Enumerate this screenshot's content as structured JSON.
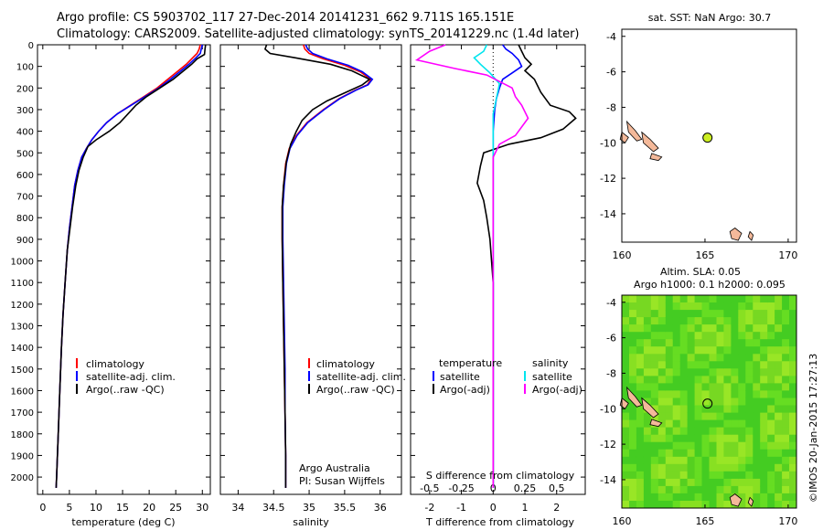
{
  "header": {
    "line1": "Argo profile: CS 5903702_117 27-Dec-2014 20141231_662 9.711S 165.151E",
    "line2": "Climatology: CARS2009. Satellite-adjusted climatology: synTS_20141229.nc (1.4d later)"
  },
  "colors": {
    "climatology": "#ff0000",
    "satellite": "#0000ff",
    "argo": "#000000",
    "satellite_s": "#00e5ee",
    "argo_s": "#ff00ff",
    "land": "#f4b99a",
    "float_marker": "#ccee22"
  },
  "chart_data": [
    {
      "name": "temperature",
      "type": "line",
      "xlabel": "temperature (deg C)",
      "xlim": [
        -1,
        31.5
      ],
      "ylim": [
        2080,
        0
      ],
      "xticks": [
        0,
        5,
        10,
        15,
        20,
        25,
        30
      ],
      "yticks": [
        0,
        100,
        200,
        300,
        400,
        500,
        600,
        700,
        800,
        900,
        1000,
        1100,
        1200,
        1300,
        1400,
        1500,
        1600,
        1700,
        1800,
        1900,
        2000
      ],
      "legend": [
        "climatology",
        "satellite-adj. clim.",
        "Argo(..raw -QC)"
      ],
      "series": [
        {
          "name": "climatology",
          "color_key": "climatology",
          "points": [
            [
              29.6,
              0
            ],
            [
              29.4,
              20
            ],
            [
              29.0,
              40
            ],
            [
              28.2,
              60
            ],
            [
              27.0,
              90
            ],
            [
              25.5,
              120
            ],
            [
              23.5,
              160
            ],
            [
              21.5,
              200
            ],
            [
              19.0,
              240
            ],
            [
              16.5,
              280
            ],
            [
              14.0,
              320
            ],
            [
              12.0,
              360
            ],
            [
              10.5,
              400
            ],
            [
              9.2,
              440
            ],
            [
              8.2,
              480
            ],
            [
              7.3,
              520
            ],
            [
              6.6,
              580
            ],
            [
              6.0,
              650
            ],
            [
              5.5,
              750
            ],
            [
              5.0,
              850
            ],
            [
              4.6,
              950
            ],
            [
              4.2,
              1100
            ],
            [
              3.8,
              1250
            ],
            [
              3.5,
              1400
            ],
            [
              3.2,
              1600
            ],
            [
              2.9,
              1800
            ],
            [
              2.6,
              2000
            ],
            [
              2.5,
              2050
            ]
          ]
        },
        {
          "name": "satellite-adj. clim.",
          "color_key": "satellite",
          "points": [
            [
              30.0,
              0
            ],
            [
              29.8,
              20
            ],
            [
              29.6,
              40
            ],
            [
              28.8,
              60
            ],
            [
              27.5,
              90
            ],
            [
              26.0,
              120
            ],
            [
              24.0,
              160
            ],
            [
              21.8,
              200
            ],
            [
              19.2,
              240
            ],
            [
              16.6,
              280
            ],
            [
              14.0,
              320
            ],
            [
              12.0,
              360
            ],
            [
              10.5,
              400
            ],
            [
              9.2,
              440
            ],
            [
              8.2,
              480
            ],
            [
              7.3,
              520
            ],
            [
              6.6,
              580
            ],
            [
              6.0,
              650
            ],
            [
              5.5,
              750
            ],
            [
              5.0,
              850
            ],
            [
              4.6,
              950
            ],
            [
              4.2,
              1100
            ],
            [
              3.8,
              1250
            ],
            [
              3.5,
              1400
            ],
            [
              3.2,
              1600
            ],
            [
              2.9,
              1800
            ],
            [
              2.6,
              2000
            ],
            [
              2.5,
              2050
            ]
          ]
        },
        {
          "name": "Argo(..raw -QC)",
          "color_key": "argo",
          "points": [
            [
              30.6,
              0
            ],
            [
              30.5,
              20
            ],
            [
              30.4,
              45
            ],
            [
              29.0,
              65
            ],
            [
              28.0,
              90
            ],
            [
              26.5,
              120
            ],
            [
              24.5,
              160
            ],
            [
              22.0,
              200
            ],
            [
              19.5,
              240
            ],
            [
              17.5,
              280
            ],
            [
              16.0,
              320
            ],
            [
              14.5,
              360
            ],
            [
              12.5,
              400
            ],
            [
              10.0,
              440
            ],
            [
              8.5,
              470
            ],
            [
              7.6,
              520
            ],
            [
              6.8,
              580
            ],
            [
              6.2,
              650
            ],
            [
              5.6,
              750
            ],
            [
              5.1,
              850
            ],
            [
              4.6,
              950
            ],
            [
              4.2,
              1100
            ],
            [
              3.8,
              1250
            ],
            [
              3.5,
              1400
            ],
            [
              3.2,
              1600
            ],
            [
              2.9,
              1800
            ],
            [
              2.6,
              2000
            ],
            [
              2.5,
              2050
            ]
          ]
        }
      ]
    },
    {
      "name": "salinity",
      "type": "line",
      "xlabel": "salinity",
      "xlim": [
        33.75,
        36.3
      ],
      "ylim": [
        2080,
        0
      ],
      "xticks": [
        34,
        34.5,
        35,
        35.5,
        36
      ],
      "xticklabels": [
        "34",
        "34.5",
        "35",
        "35.5",
        "36"
      ],
      "legend": [
        "climatology",
        "satellite-adj. clim.",
        "Argo(..raw -QC)"
      ],
      "annotation": [
        "Argo Australia",
        "PI: Susan Wijffels"
      ],
      "series": [
        {
          "name": "climatology",
          "color_key": "climatology",
          "points": [
            [
              34.92,
              0
            ],
            [
              34.94,
              20
            ],
            [
              35.0,
              40
            ],
            [
              35.2,
              65
            ],
            [
              35.5,
              95
            ],
            [
              35.72,
              125
            ],
            [
              35.87,
              160
            ],
            [
              35.82,
              185
            ],
            [
              35.65,
              210
            ],
            [
              35.42,
              250
            ],
            [
              35.2,
              300
            ],
            [
              34.97,
              360
            ],
            [
              34.82,
              420
            ],
            [
              34.72,
              480
            ],
            [
              34.67,
              550
            ],
            [
              34.64,
              650
            ],
            [
              34.62,
              750
            ],
            [
              34.62,
              900
            ],
            [
              34.63,
              1100
            ],
            [
              34.64,
              1300
            ],
            [
              34.65,
              1500
            ],
            [
              34.66,
              1700
            ],
            [
              34.67,
              1900
            ],
            [
              34.67,
              2050
            ]
          ]
        },
        {
          "name": "satellite-adj. clim.",
          "color_key": "satellite",
          "points": [
            [
              34.95,
              0
            ],
            [
              34.98,
              20
            ],
            [
              35.05,
              40
            ],
            [
              35.25,
              65
            ],
            [
              35.55,
              95
            ],
            [
              35.75,
              125
            ],
            [
              35.89,
              160
            ],
            [
              35.83,
              185
            ],
            [
              35.66,
              210
            ],
            [
              35.43,
              250
            ],
            [
              35.21,
              300
            ],
            [
              34.98,
              360
            ],
            [
              34.83,
              420
            ],
            [
              34.73,
              480
            ],
            [
              34.68,
              550
            ],
            [
              34.65,
              650
            ],
            [
              34.63,
              750
            ],
            [
              34.63,
              900
            ],
            [
              34.64,
              1100
            ],
            [
              34.65,
              1300
            ],
            [
              34.66,
              1500
            ],
            [
              34.66,
              1700
            ],
            [
              34.67,
              1900
            ],
            [
              34.67,
              2050
            ]
          ]
        },
        {
          "name": "Argo(..raw -QC)",
          "color_key": "argo",
          "points": [
            [
              34.4,
              0
            ],
            [
              34.38,
              20
            ],
            [
              34.45,
              40
            ],
            [
              34.8,
              60
            ],
            [
              35.3,
              90
            ],
            [
              35.6,
              120
            ],
            [
              35.85,
              160
            ],
            [
              35.75,
              185
            ],
            [
              35.55,
              215
            ],
            [
              35.25,
              260
            ],
            [
              35.05,
              300
            ],
            [
              34.9,
              350
            ],
            [
              34.82,
              400
            ],
            [
              34.74,
              460
            ],
            [
              34.68,
              540
            ],
            [
              34.64,
              650
            ],
            [
              34.62,
              750
            ],
            [
              34.62,
              900
            ],
            [
              34.63,
              1100
            ],
            [
              34.64,
              1300
            ],
            [
              34.65,
              1500
            ],
            [
              34.66,
              1700
            ],
            [
              34.67,
              1900
            ],
            [
              34.67,
              2050
            ]
          ]
        }
      ]
    },
    {
      "name": "differences",
      "type": "line",
      "xlabel": "T difference from climatology",
      "xlabel_top": "S difference from climatology",
      "xlim": [
        -2.6,
        2.9
      ],
      "ylim": [
        2080,
        0
      ],
      "xticks_T": [
        -2,
        -1,
        0,
        1,
        2
      ],
      "xticks_S": [
        -0.5,
        -0.25,
        0,
        0.25,
        0.5
      ],
      "xticklabels_S": [
        "-0.5",
        "-0.25",
        "0",
        "0.25",
        "0.5"
      ],
      "legend_T": [
        "temperature",
        "satellite",
        "Argo(-adj)"
      ],
      "legend_S": [
        "salinity",
        "satellite",
        "Argo(-adj)"
      ],
      "series": [
        {
          "name": "satellite T",
          "color_key": "satellite",
          "points": [
            [
              0.3,
              0
            ],
            [
              0.4,
              20
            ],
            [
              0.6,
              40
            ],
            [
              0.8,
              70
            ],
            [
              0.9,
              100
            ],
            [
              0.6,
              130
            ],
            [
              0.3,
              160
            ],
            [
              0.2,
              200
            ],
            [
              0.1,
              250
            ],
            [
              0.05,
              300
            ],
            [
              0.0,
              400
            ],
            [
              0.0,
              600
            ],
            [
              0.0,
              1000
            ],
            [
              0.0,
              2050
            ]
          ]
        },
        {
          "name": "Argo T",
          "color_key": "argo",
          "points": [
            [
              0.8,
              0
            ],
            [
              0.9,
              30
            ],
            [
              1.0,
              60
            ],
            [
              1.2,
              90
            ],
            [
              1.0,
              120
            ],
            [
              1.3,
              160
            ],
            [
              1.5,
              220
            ],
            [
              1.8,
              280
            ],
            [
              2.4,
              310
            ],
            [
              2.6,
              340
            ],
            [
              2.2,
              390
            ],
            [
              1.5,
              430
            ],
            [
              0.5,
              460
            ],
            [
              -0.3,
              500
            ],
            [
              -0.4,
              560
            ],
            [
              -0.5,
              640
            ],
            [
              -0.3,
              720
            ],
            [
              -0.2,
              800
            ],
            [
              -0.1,
              900
            ],
            [
              0.0,
              1100
            ],
            [
              0.0,
              1300
            ],
            [
              0.0,
              2050
            ]
          ]
        },
        {
          "name": "satellite S",
          "color_key": "satellite_s",
          "points": [
            [
              -0.2,
              0
            ],
            [
              -0.3,
              30
            ],
            [
              -0.6,
              60
            ],
            [
              -0.4,
              90
            ],
            [
              -0.1,
              130
            ],
            [
              0.2,
              180
            ],
            [
              0.1,
              250
            ],
            [
              0.0,
              320
            ],
            [
              0.0,
              420
            ],
            [
              0.0,
              700
            ],
            [
              0.0,
              2050
            ]
          ]
        },
        {
          "name": "Argo S",
          "color_key": "argo_s",
          "points": [
            [
              -1.5,
              0
            ],
            [
              -2.0,
              30
            ],
            [
              -2.4,
              70
            ],
            [
              -1.2,
              110
            ],
            [
              -0.2,
              140
            ],
            [
              0.6,
              200
            ],
            [
              0.7,
              240
            ],
            [
              0.9,
              280
            ],
            [
              1.1,
              340
            ],
            [
              0.7,
              420
            ],
            [
              0.2,
              460
            ],
            [
              0.0,
              520
            ],
            [
              0.0,
              800
            ],
            [
              0.0,
              2050
            ]
          ]
        }
      ]
    },
    {
      "name": "sst_map",
      "type": "scatter",
      "title": "sat. SST: NaN Argo: 30.7",
      "xlim": [
        160,
        170.5
      ],
      "ylim": [
        -15.6,
        -3.6
      ],
      "xticks": [
        160,
        165,
        170
      ],
      "yticks": [
        -4,
        -6,
        -8,
        -10,
        -12,
        -14
      ],
      "float_position": [
        165.151,
        -9.711
      ]
    },
    {
      "name": "sla_map",
      "type": "heatmap",
      "title_line1": "Altim. SLA: 0.05",
      "title_line2": "Argo h1000: 0.1 h2000: 0.095",
      "xlim": [
        160,
        170.5
      ],
      "ylim": [
        -15.6,
        -3.6
      ],
      "xticks": [
        160,
        165,
        170
      ],
      "yticks": [
        -4,
        -6,
        -8,
        -10,
        -12,
        -14
      ],
      "float_position": [
        165.151,
        -9.711
      ]
    }
  ],
  "footer": {
    "credit": "©IMOS 20-Jan-2015 17:27:13"
  }
}
